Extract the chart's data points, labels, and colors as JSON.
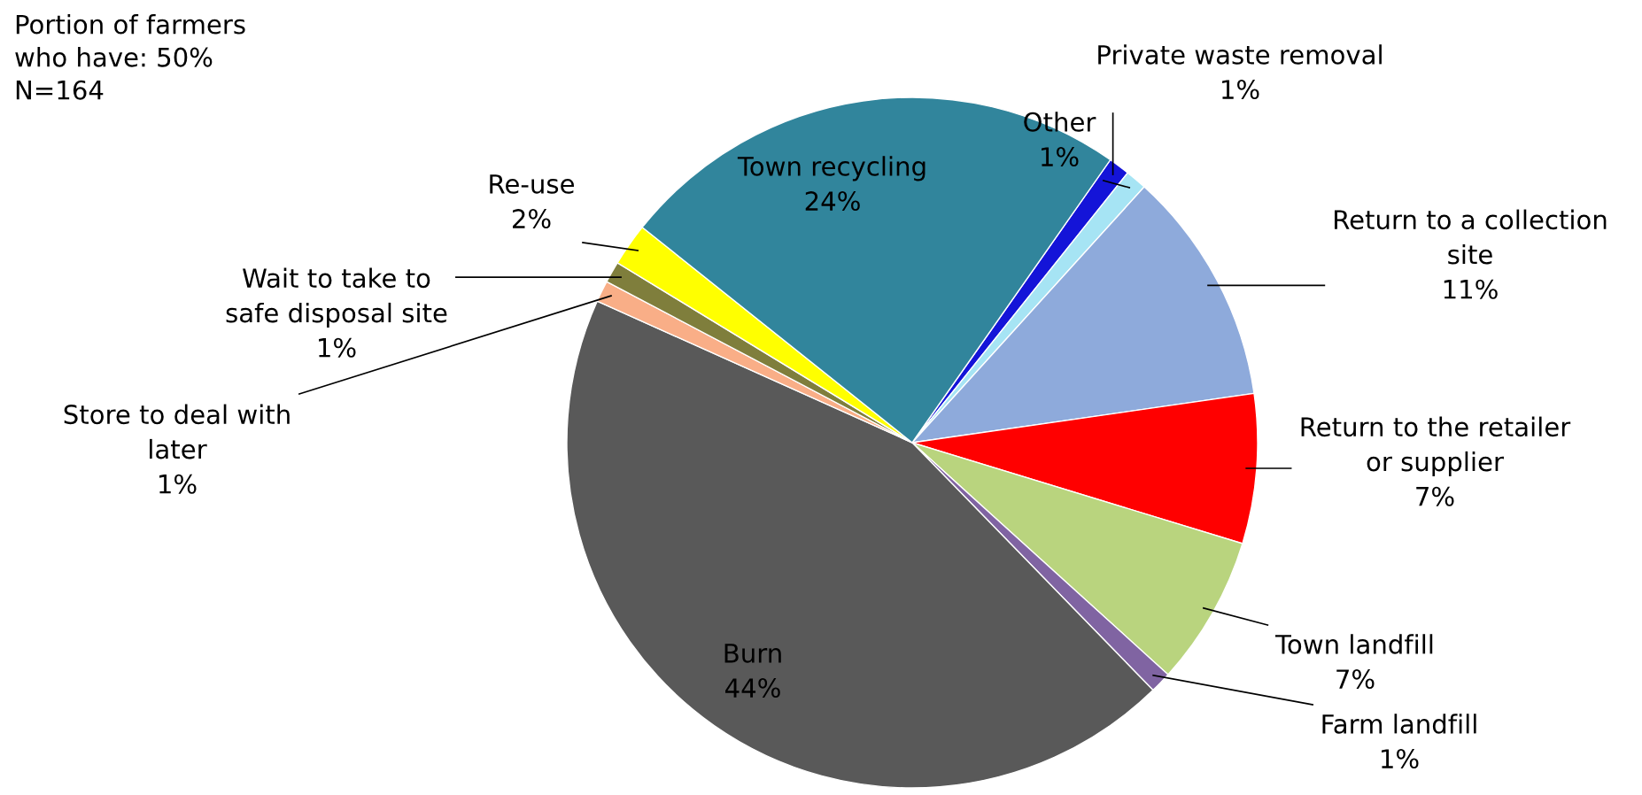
{
  "chart_data": {
    "type": "pie",
    "categories": [
      "Private waste removal",
      "Other",
      "Return to a collection\nsite",
      "Return to the retailer\nor supplier",
      "Town landfill",
      "Farm landfill",
      "Burn",
      "Store to deal with\nlater",
      "Wait to take to\nsafe disposal site",
      "Re-use",
      "Town recycling"
    ],
    "values": [
      1,
      1,
      11,
      7,
      7,
      1,
      44,
      1,
      1,
      2,
      24
    ],
    "colors": [
      "#1414d8",
      "#a6e4f4",
      "#8eaadb",
      "#ff0000",
      "#b9d47e",
      "#8064a2",
      "#595959",
      "#f9ae87",
      "#7f7e3c",
      "#ffff00",
      "#31859c"
    ],
    "value_labels": [
      "1%",
      "1%",
      "11%",
      "7%",
      "7%",
      "1%",
      "44%",
      "1%",
      "1%",
      "2%",
      "24%"
    ],
    "annotations": [
      "Portion of farmers\nwho have: 50%\nN=164"
    ]
  }
}
